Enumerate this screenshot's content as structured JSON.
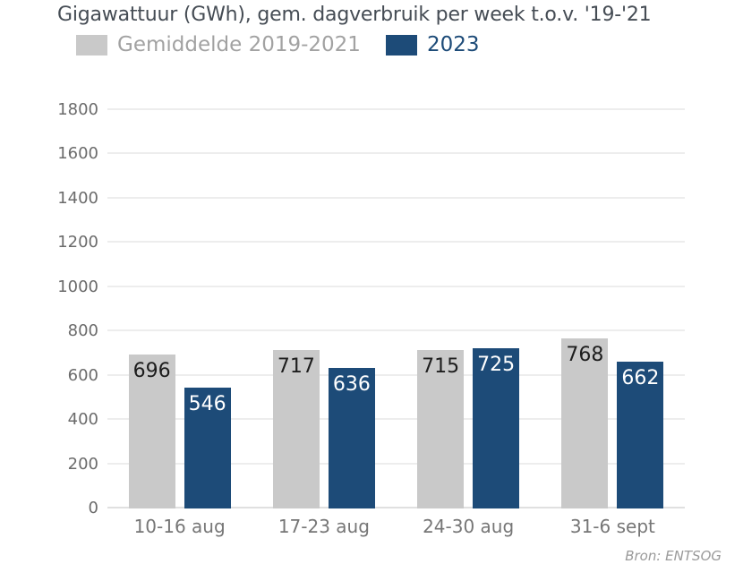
{
  "page": {
    "title": "Gigawattuur (GWh), gem. dagverbruik per week t.o.v. '19-'21",
    "source": "Bron: ENTSOG"
  },
  "colors": {
    "background": "#ffffff",
    "title_text": "#454c54",
    "legend_gray_text": "#a2a2a2",
    "legend_blue_text": "#1d4b78",
    "bar_gray": "#c9c9c9",
    "bar_blue": "#1d4b78",
    "gridline": "#ededed",
    "axis_label": "#6b6b6b"
  },
  "chart_data": {
    "type": "bar",
    "title": "Gigawattuur (GWh), gem. dagverbruik per week t.o.v. '19-'21",
    "categories": [
      "10-16 aug",
      "17-23 aug",
      "24-30 aug",
      "31-6 sept"
    ],
    "series": [
      {
        "name": "Gemiddelde 2019-2021",
        "color": "#c9c9c9",
        "label_color": "#1d1d1d",
        "values": [
          696,
          717,
          715,
          768
        ]
      },
      {
        "name": "2023",
        "color": "#1d4b78",
        "label_color": "#ffffff",
        "values": [
          546,
          636,
          725,
          662
        ]
      }
    ],
    "ylim": [
      0,
      1800
    ],
    "ytick_step": 200,
    "grid": true,
    "legend_position": "top",
    "value_labels": "inside-top",
    "xlabel": "",
    "ylabel": ""
  }
}
